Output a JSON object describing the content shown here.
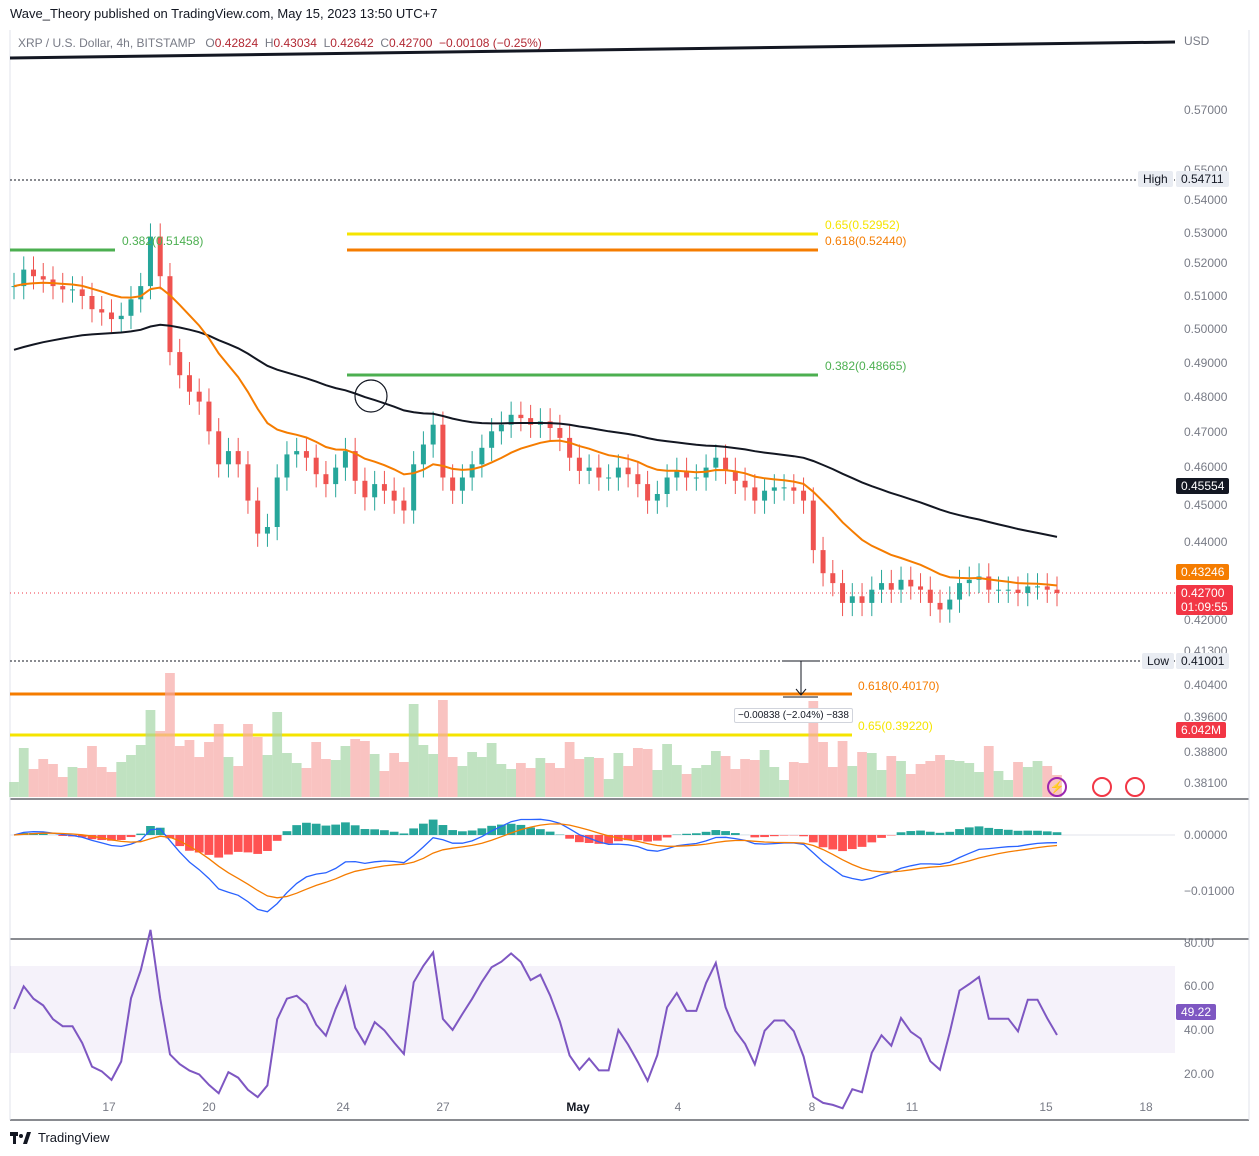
{
  "header": {
    "publisher": "Wave_Theory published on TradingView.com, May 15, 2023 13:50 UTC+7"
  },
  "symbol": {
    "name": "XRP / U.S. Dollar, 4h, BITSTAMP",
    "open_label": "O",
    "open": "0.42824",
    "high_label": "H",
    "high": "0.43034",
    "low_label": "L",
    "low": "0.42642",
    "close_label": "C",
    "close": "0.42700",
    "change": "−0.00108 (−0.25%)"
  },
  "price_axis": {
    "currency": "USD",
    "ticks": [
      "0.57000",
      "0.55000",
      "0.54000",
      "0.53000",
      "0.52000",
      "0.51000",
      "0.50000",
      "0.49000",
      "0.48000",
      "0.47000",
      "0.46000",
      "0.45000",
      "0.44000",
      "0.42000",
      "0.41300",
      "0.40400",
      "0.39600",
      "0.38800",
      "0.38100"
    ],
    "high_label": "High",
    "high_value": "0.54711",
    "low_label": "Low",
    "low_value": "0.41001",
    "ema200_value": "0.45554",
    "ema50_value": "0.43246",
    "last_price": "0.42700",
    "countdown": "01:09:55",
    "volume": "6.042M"
  },
  "fib_levels": [
    {
      "label": "0.382(0.51458)",
      "color": "#4caf50"
    },
    {
      "label": "0.65(0.52952)",
      "color": "#f5e400"
    },
    {
      "label": "0.618(0.52440)",
      "color": "#f57c00"
    },
    {
      "label": "0.382(0.48665)",
      "color": "#4caf50"
    },
    {
      "label": "0.618(0.40170)",
      "color": "#f57c00"
    },
    {
      "label": "0.65(0.39220)",
      "color": "#f5e400"
    }
  ],
  "measure": {
    "text": "−0.00838 (−2.04%) −838"
  },
  "macd_axis": {
    "ticks": [
      "0.00000",
      "−0.01000"
    ]
  },
  "rsi_axis": {
    "ticks": [
      "80.00",
      "60.00",
      "40.00",
      "20.00"
    ],
    "value": "49.22"
  },
  "time_axis": {
    "labels": [
      "17",
      "20",
      "24",
      "27",
      "May",
      "4",
      "8",
      "11",
      "15",
      "18"
    ]
  },
  "footer": {
    "brand": "TradingView"
  },
  "colors": {
    "up": "#26a69a",
    "down": "#ef5350",
    "ema50": "#f57c00",
    "ema200": "#131722",
    "rsi": "#7e57c2",
    "macd": "#2962ff"
  },
  "chart_data": {
    "type": "candlestick",
    "title": "XRP / U.S. Dollar, 4h, BITSTAMP",
    "x_labels": [
      "17",
      "20",
      "24",
      "27",
      "May",
      "4",
      "8",
      "11",
      "15",
      "18"
    ],
    "ylim": [
      0.378,
      0.598
    ],
    "close_series": [
      0.52,
      0.525,
      0.523,
      0.522,
      0.52,
      0.519,
      0.519,
      0.517,
      0.513,
      0.512,
      0.51,
      0.511,
      0.516,
      0.52,
      0.535,
      0.523,
      0.5,
      0.493,
      0.488,
      0.485,
      0.476,
      0.466,
      0.47,
      0.466,
      0.455,
      0.445,
      0.447,
      0.462,
      0.469,
      0.47,
      0.468,
      0.463,
      0.46,
      0.465,
      0.47,
      0.461,
      0.456,
      0.46,
      0.458,
      0.455,
      0.452,
      0.466,
      0.472,
      0.478,
      0.462,
      0.458,
      0.462,
      0.466,
      0.471,
      0.476,
      0.478,
      0.481,
      0.48,
      0.478,
      0.479,
      0.477,
      0.474,
      0.468,
      0.464,
      0.465,
      0.462,
      0.462,
      0.465,
      0.463,
      0.46,
      0.455,
      0.457,
      0.462,
      0.464,
      0.462,
      0.462,
      0.465,
      0.468,
      0.464,
      0.461,
      0.459,
      0.455,
      0.458,
      0.459,
      0.459,
      0.458,
      0.455,
      0.44,
      0.433,
      0.43,
      0.424,
      0.426,
      0.424,
      0.428,
      0.43,
      0.428,
      0.431,
      0.429,
      0.428,
      0.424,
      0.422,
      0.425,
      0.43,
      0.431,
      0.432,
      0.428,
      0.428,
      0.428,
      0.427,
      0.429,
      0.429,
      0.428,
      0.427
    ]
  }
}
